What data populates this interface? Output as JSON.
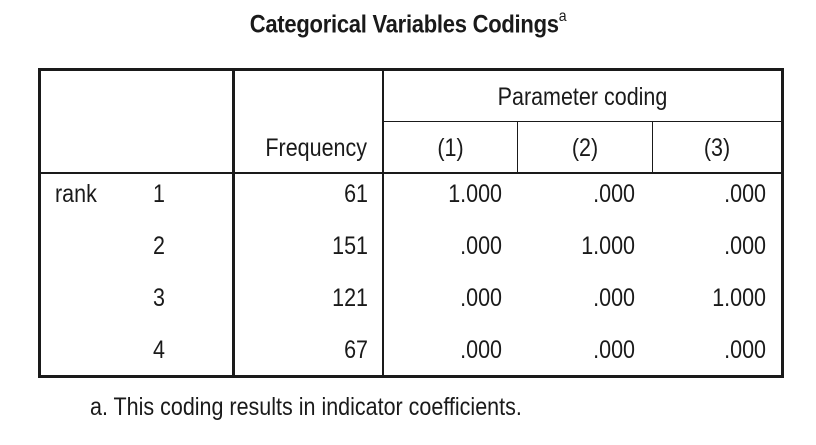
{
  "title": "Categorical Variables Codings",
  "title_superscript": "a",
  "table": {
    "header": {
      "frequency": "Frequency",
      "parameter_coding": "Parameter coding",
      "param_cols": [
        "(1)",
        "(2)",
        "(3)"
      ]
    },
    "variable": "rank",
    "rows": [
      {
        "category": "1",
        "frequency": "61",
        "p1": "1.000",
        "p2": ".000",
        "p3": ".000"
      },
      {
        "category": "2",
        "frequency": "151",
        "p1": ".000",
        "p2": "1.000",
        "p3": ".000"
      },
      {
        "category": "3",
        "frequency": "121",
        "p1": ".000",
        "p2": ".000",
        "p3": "1.000"
      },
      {
        "category": "4",
        "frequency": "67",
        "p1": ".000",
        "p2": ".000",
        "p3": ".000"
      }
    ]
  },
  "footnote": "a. This coding results in indicator coefficients."
}
